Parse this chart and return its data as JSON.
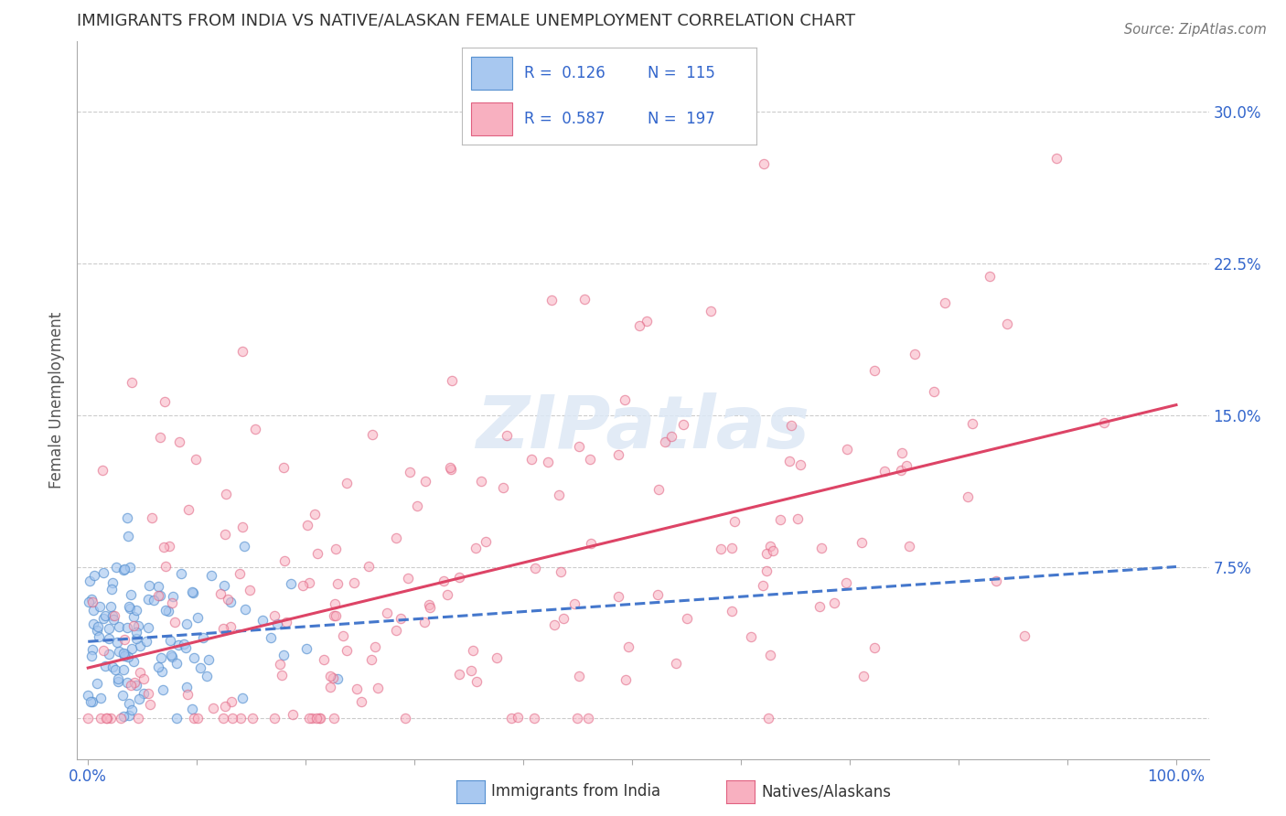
{
  "title": "IMMIGRANTS FROM INDIA VS NATIVE/ALASKAN FEMALE UNEMPLOYMENT CORRELATION CHART",
  "source": "Source: ZipAtlas.com",
  "ylabel": "Female Unemployment",
  "legend_R1": "R =  0.126",
  "legend_N1": "N =  115",
  "legend_R2": "R =  0.587",
  "legend_N2": "N =  197",
  "blue_fill": "#a8c8f0",
  "blue_edge": "#5590d0",
  "pink_fill": "#f8b0c0",
  "pink_edge": "#e06080",
  "blue_line_color": "#4477cc",
  "pink_line_color": "#dd4466",
  "label_color": "#3366cc",
  "background_color": "#ffffff",
  "grid_color": "#cccccc",
  "title_color": "#333333",
  "watermark_color": "#dde8f5",
  "yticks": [
    0.0,
    0.075,
    0.15,
    0.225,
    0.3
  ],
  "ytick_labels_right": [
    "",
    "7.5%",
    "15.0%",
    "22.5%",
    "30.0%"
  ],
  "xtick_vals": [
    0.0,
    0.1,
    0.2,
    0.3,
    0.4,
    0.5,
    0.6,
    0.7,
    0.8,
    0.9,
    1.0
  ],
  "xtick_labels": [
    "0.0%",
    "",
    "",
    "",
    "",
    "",
    "",
    "",
    "",
    "",
    "100.0%"
  ],
  "blue_trend_x": [
    0.0,
    1.0
  ],
  "blue_trend_y": [
    0.038,
    0.075
  ],
  "pink_trend_x": [
    0.0,
    1.0
  ],
  "pink_trend_y": [
    0.025,
    0.155
  ],
  "xmin": -0.01,
  "xmax": 1.03,
  "ymin": -0.02,
  "ymax": 0.335
}
